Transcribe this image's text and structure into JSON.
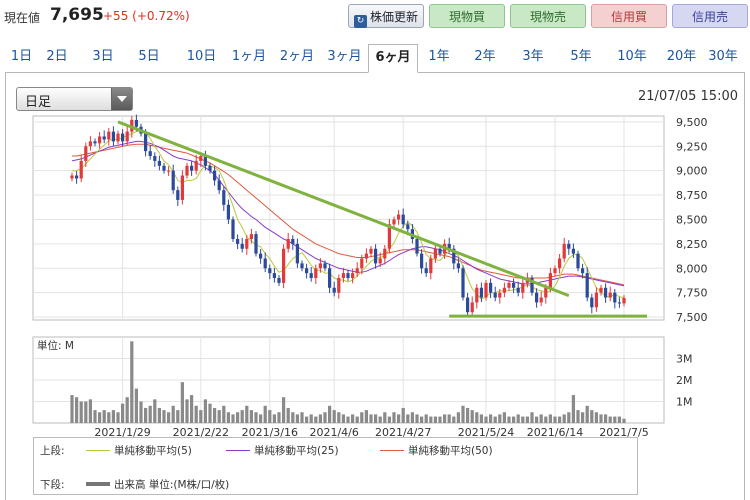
{
  "header": {
    "price_label": "現在値",
    "price_value": "7,695",
    "price_change": "+55 (+0.72%)",
    "buttons": {
      "update": "株価更新",
      "spot_buy": "現物買",
      "spot_sell": "現物売",
      "margin_buy": "信用買",
      "margin_sell": "信用売"
    }
  },
  "period_tabs": [
    "1日",
    "2日",
    "3日",
    "5日",
    "10日",
    "1ヶ月",
    "2ヶ月",
    "3ヶ月",
    "6ヶ月",
    "1年",
    "2年",
    "3年",
    "5年",
    "10年",
    "20年",
    "30年"
  ],
  "active_tab": "6ヶ月",
  "chart_controls": {
    "candle_type": "日足",
    "datetime": "21/07/05 15:00"
  },
  "chart_data": [
    {
      "type": "candlestick",
      "y_ticks": [
        "9,500",
        "9,250",
        "9,000",
        "8,750",
        "8,500",
        "8,250",
        "8,000",
        "7,750",
        "7,500"
      ],
      "ylim": [
        7470,
        9560
      ],
      "x_ticks": [
        "2021/1/29",
        "2021/2/22",
        "2021/3/16",
        "2021/4/6",
        "2021/4/27",
        "2021/5/24",
        "2021/6/14",
        "2021/7/5"
      ],
      "close": [
        8950,
        8920,
        9100,
        9250,
        9300,
        9280,
        9350,
        9320,
        9400,
        9300,
        9380,
        9300,
        9400,
        9520,
        9450,
        9380,
        9200,
        9150,
        9100,
        9050,
        9000,
        9000,
        8800,
        8700,
        8950,
        9050,
        9000,
        9100,
        9150,
        9050,
        9000,
        8900,
        8800,
        8650,
        8500,
        8300,
        8250,
        8200,
        8300,
        8350,
        8150,
        8100,
        8000,
        7950,
        7900,
        7850,
        8200,
        8300,
        8250,
        8050,
        8000,
        7950,
        7900,
        8000,
        8050,
        8000,
        7800,
        7750,
        7900,
        7950,
        7900,
        7950,
        8000,
        8100,
        8150,
        8200,
        8050,
        8100,
        8200,
        8450,
        8500,
        8550,
        8450,
        8400,
        8300,
        8150,
        8000,
        7950,
        8100,
        8200,
        8150,
        8250,
        8200,
        8050,
        8000,
        7700,
        7550,
        7650,
        7800,
        7700,
        7850,
        7750,
        7700,
        7750,
        7800,
        7850,
        7800,
        7750,
        7850,
        7900,
        7750,
        7650,
        7700,
        7800,
        7950,
        8000,
        8100,
        8250,
        8200,
        8150,
        8000,
        7950,
        7700,
        7600,
        7750,
        7800,
        7700,
        7750,
        7650,
        7640,
        7695
      ],
      "sma_5": [
        9000,
        9000,
        9020,
        9070,
        9120,
        9170,
        9220,
        9260,
        9310,
        9320,
        9320,
        9340,
        9360,
        9380,
        9400,
        9410,
        9390,
        9330,
        9250,
        9180,
        9100,
        9060,
        8990,
        8900,
        8880,
        8900,
        8900,
        8920,
        9000,
        9060,
        9050,
        9030,
        9000,
        8900,
        8770,
        8640,
        8500,
        8420,
        8320,
        8280,
        8240,
        8220,
        8150,
        8100,
        8020,
        7960,
        7980,
        8040,
        8100,
        8130,
        8160,
        8100,
        8030,
        7980,
        7980,
        7950,
        7950,
        7900,
        7880,
        7880,
        7860,
        7880,
        7920,
        7970,
        8020,
        8070,
        8100,
        8110,
        8130,
        8200,
        8260,
        8360,
        8430,
        8470,
        8440,
        8370,
        8260,
        8140,
        8100,
        8090,
        8080,
        8130,
        8180,
        8160,
        8130,
        8020,
        7900,
        7790,
        7740,
        7680,
        7710,
        7750,
        7750,
        7770,
        7770,
        7770,
        7780,
        7790,
        7810,
        7830,
        7810,
        7780,
        7770,
        7750,
        7770,
        7820,
        7910,
        8020,
        8100,
        8140,
        8140,
        8100,
        8000,
        7900,
        7800,
        7760,
        7710,
        7710,
        7730,
        7710,
        7700
      ],
      "sma_25": [
        9100,
        9110,
        9120,
        9140,
        9160,
        9180,
        9200,
        9220,
        9240,
        9250,
        9260,
        9270,
        9280,
        9290,
        9300,
        9300,
        9290,
        9280,
        9260,
        9240,
        9210,
        9180,
        9150,
        9130,
        9120,
        9110,
        9100,
        9080,
        9060,
        9030,
        9000,
        8960,
        8900,
        8840,
        8780,
        8720,
        8660,
        8610,
        8570,
        8530,
        8500,
        8460,
        8420,
        8390,
        8360,
        8330,
        8300,
        8280,
        8250,
        8220,
        8190,
        8160,
        8130,
        8100,
        8080,
        8060,
        8040,
        8020,
        8000,
        7990,
        7980,
        7970,
        7960,
        7960,
        7970,
        7990,
        8010,
        8030,
        8050,
        8080,
        8110,
        8140,
        8160,
        8180,
        8200,
        8210,
        8220,
        8220,
        8210,
        8200,
        8190,
        8170,
        8150,
        8130,
        8110,
        8080,
        8050,
        8020,
        7990,
        7970,
        7950,
        7930,
        7910,
        7890,
        7880,
        7870,
        7860,
        7850,
        7840,
        7840,
        7840,
        7850,
        7860,
        7870,
        7880,
        7890,
        7900,
        7910,
        7920,
        7920,
        7920,
        7910,
        7900,
        7890,
        7880,
        7870,
        7860,
        7850,
        7840,
        7830,
        7820
      ],
      "sma_50": [
        9150,
        9150,
        9160,
        9170,
        9180,
        9190,
        9200,
        9210,
        9220,
        9230,
        9240,
        9250,
        9260,
        9265,
        9270,
        9270,
        9270,
        9260,
        9250,
        9240,
        9230,
        9220,
        9210,
        9200,
        9190,
        9180,
        9160,
        9140,
        9120,
        9100,
        9080,
        9050,
        9020,
        8990,
        8960,
        8920,
        8880,
        8840,
        8800,
        8760,
        8720,
        8680,
        8640,
        8600,
        8560,
        8520,
        8480,
        8440,
        8400,
        8370,
        8340,
        8310,
        8280,
        8250,
        8230,
        8210,
        8190,
        8170,
        8150,
        8140,
        8130,
        8120,
        8110,
        8110,
        8110,
        8120,
        8130,
        8140,
        8150,
        8160,
        8170,
        8180,
        8190,
        8190,
        8190,
        8190,
        8180,
        8170,
        8160,
        8150,
        8140,
        8130,
        8120,
        8100,
        8080,
        8060,
        8040,
        8020,
        8000,
        7980,
        7970,
        7960,
        7950,
        7940,
        7930,
        7920,
        7910,
        7900,
        7900,
        7900,
        7900,
        7900,
        7900,
        7900,
        7910,
        7920,
        7930,
        7940,
        7940,
        7940,
        7930,
        7920,
        7910,
        7900,
        7890,
        7880,
        7870,
        7860,
        7850,
        7840,
        7830
      ],
      "volume_ticks": [
        "3M",
        "2M",
        "1M"
      ],
      "volume_m": [
        1.3,
        1.2,
        1.0,
        1.0,
        1.1,
        0.6,
        0.5,
        0.6,
        0.5,
        0.6,
        0.5,
        0.9,
        1.2,
        3.8,
        1.6,
        1.0,
        0.7,
        0.8,
        1.1,
        0.7,
        0.6,
        0.5,
        0.8,
        0.6,
        1.9,
        1.1,
        1.3,
        0.8,
        0.6,
        1.1,
        0.9,
        0.7,
        0.6,
        0.8,
        0.5,
        0.4,
        0.5,
        0.6,
        0.8,
        0.6,
        0.5,
        0.4,
        0.8,
        0.6,
        0.4,
        0.5,
        1.2,
        0.7,
        0.5,
        0.4,
        0.5,
        0.3,
        0.4,
        0.3,
        0.4,
        0.5,
        0.8,
        0.6,
        0.5,
        0.4,
        0.3,
        0.4,
        0.3,
        0.5,
        0.6,
        0.4,
        0.4,
        0.3,
        0.5,
        0.3,
        0.5,
        0.4,
        0.7,
        0.4,
        0.5,
        0.4,
        0.3,
        0.4,
        0.3,
        0.3,
        0.3,
        0.4,
        0.4,
        0.3,
        0.5,
        0.8,
        0.7,
        0.6,
        0.5,
        0.4,
        0.3,
        0.4,
        0.3,
        0.4,
        0.5,
        0.3,
        0.3,
        0.4,
        0.3,
        0.3,
        0.5,
        0.3,
        0.4,
        0.3,
        0.4,
        0.3,
        0.3,
        0.4,
        0.5,
        1.3,
        0.6,
        0.5,
        0.8,
        0.6,
        0.5,
        0.4,
        0.4,
        0.3,
        0.3,
        0.3,
        0.2
      ],
      "trendlines": [
        {
          "color": "#7fb23f",
          "from": {
            "day": 10,
            "price": 9500
          },
          "to": {
            "day": 108,
            "price": 7720
          }
        },
        {
          "color": "#7fb23f",
          "from": {
            "day": 82,
            "price": 7510
          },
          "to": {
            "day": 125,
            "price": 7510
          }
        }
      ],
      "up_color": "#e03a3a",
      "down_color": "#2c4a9a",
      "grid": true
    }
  ],
  "legend": {
    "upper_label": "上段:",
    "lower_label": "下段:",
    "sma5": "単純移動平均(5)",
    "sma25": "単純移動平均(25)",
    "sma50": "単純移動平均(50)",
    "volume": "出来高 単位:(M株/口/枚)",
    "volume_axis_label": "単位: M",
    "colors": {
      "sma5": "#b9c93a",
      "sma25": "#8a3ad0",
      "sma50": "#e05a3a"
    }
  }
}
